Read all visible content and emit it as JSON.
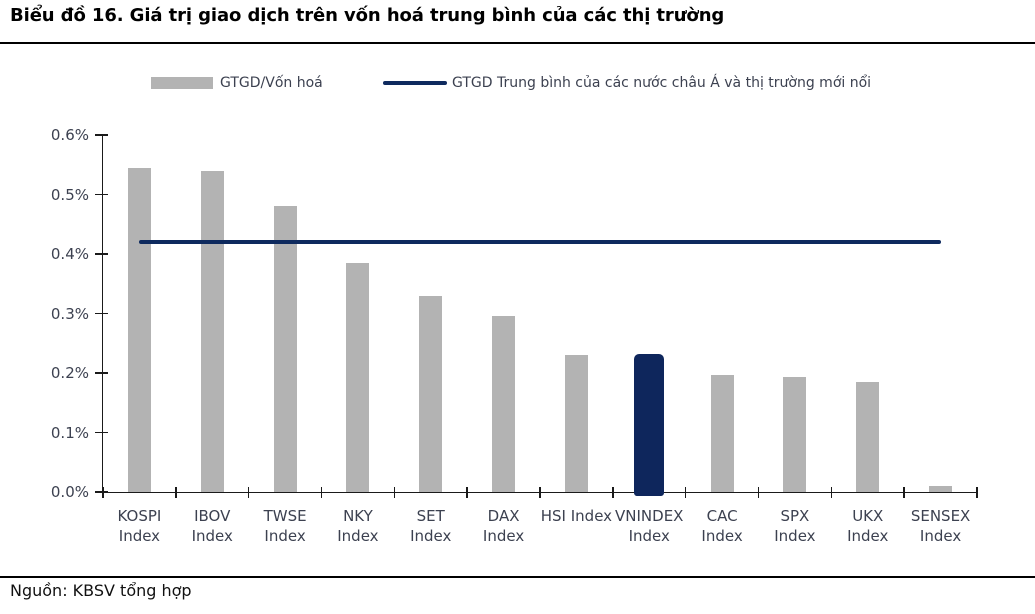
{
  "header": {
    "title": "Biểu đồ 16. Giá trị giao dịch trên vốn hoá trung bình của các thị trường"
  },
  "legend": {
    "bar_label": "GTGD/Vốn hoá",
    "line_label": "GTGD Trung bình của các nước châu Á và thị trường mới nổi"
  },
  "footer": {
    "source": "Nguồn: KBSV tổng hợp"
  },
  "colors": {
    "bar": "#b3b3b3",
    "highlight_bar": "#0e265c",
    "reference_line": "#0e2a5e",
    "axis": "#1a1a1a",
    "tick_text": "#3c4150",
    "title_text": "#000000"
  },
  "chart_data": {
    "type": "bar",
    "title": "Biểu đồ 16. Giá trị giao dịch trên vốn hoá trung bình của các thị trường",
    "unit": "%",
    "categories": [
      "KOSPI\nIndex",
      "IBOV\nIndex",
      "TWSE\nIndex",
      "NKY\nIndex",
      "SET\nIndex",
      "DAX\nIndex",
      "HSI Index",
      "VNINDEX\nIndex",
      "CAC\nIndex",
      "SPX\nIndex",
      "UKX\nIndex",
      "SENSEX\nIndex"
    ],
    "series": [
      {
        "name": "GTGD/Vốn hoá",
        "values": [
          0.545,
          0.54,
          0.48,
          0.385,
          0.33,
          0.295,
          0.23,
          0.232,
          0.196,
          0.193,
          0.185,
          0.01
        ]
      }
    ],
    "highlight_index": 7,
    "highlight_category": "VNINDEX Index",
    "reference_line": {
      "name": "GTGD Trung bình của các nước châu Á và thị trường mới nổi",
      "value": 0.42
    },
    "ylim": [
      0,
      0.6
    ],
    "ytick_step": 0.1,
    "yticklabels": [
      "0.0%",
      "0.1%",
      "0.2%",
      "0.3%",
      "0.4%",
      "0.5%",
      "0.6%"
    ],
    "xlabel": "",
    "ylabel": "",
    "grid": false,
    "legend_position": "top"
  }
}
